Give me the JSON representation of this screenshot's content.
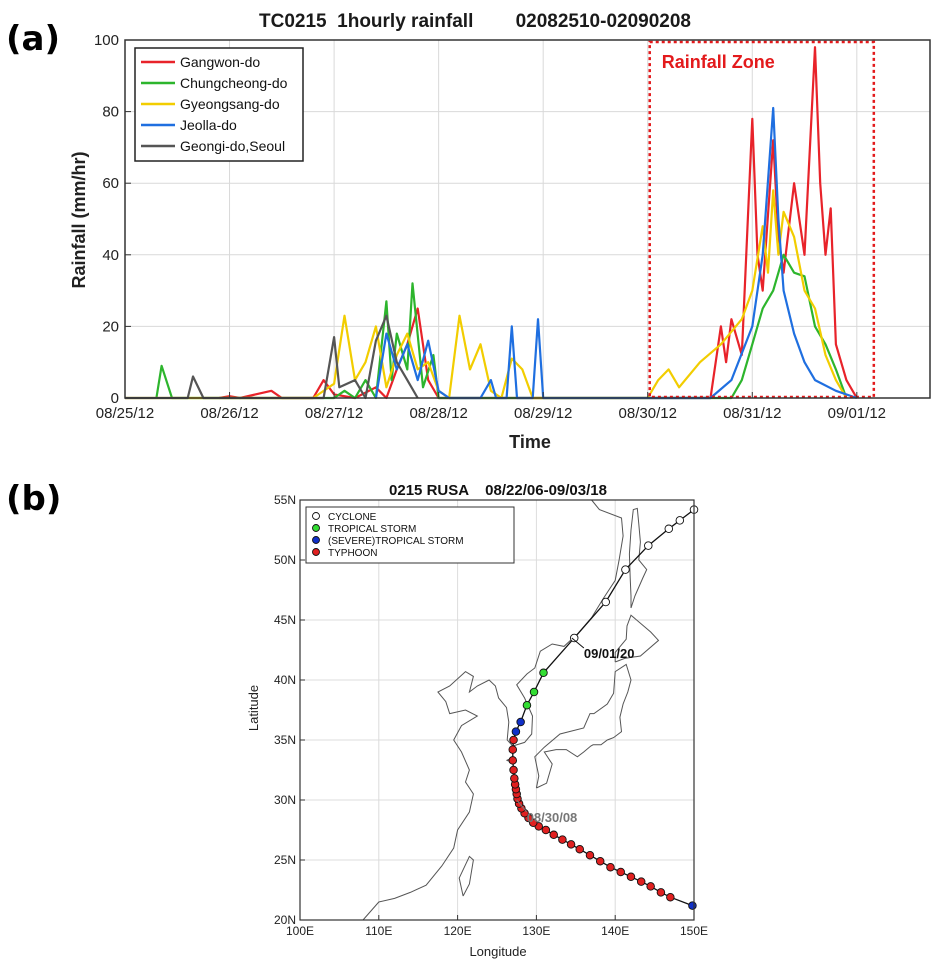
{
  "panels": {
    "a_label": "(a)",
    "b_label": "(b)"
  },
  "chart_data": [
    {
      "type": "line",
      "title": "TC0215  1hourly rainfall        02082510-02090208",
      "xlabel": "Time",
      "ylabel": "Rainfall (mm/hr)",
      "x_ticks": [
        "08/25/12",
        "08/26/12",
        "08/27/12",
        "08/28/12",
        "08/29/12",
        "08/30/12",
        "08/31/12",
        "09/01/12"
      ],
      "xlim": [
        "08/25/12",
        "09/01/12+0.7d"
      ],
      "ylim": [
        0,
        100
      ],
      "y_ticks": [
        0,
        20,
        40,
        60,
        80,
        100
      ],
      "grid": true,
      "legend_position": "top-left",
      "annotation": {
        "text": "Rainfall Zone",
        "color": "#e31a1c",
        "x_range_days": [
          5.0,
          7.0
        ]
      },
      "series": [
        {
          "name": "Gangwon-do",
          "color": "#e8232a",
          "points": [
            [
              0.9,
              0
            ],
            [
              1.0,
              0.5
            ],
            [
              1.1,
              0
            ],
            [
              1.4,
              2
            ],
            [
              1.5,
              0
            ],
            [
              1.8,
              0
            ],
            [
              1.9,
              5
            ],
            [
              2.0,
              1
            ],
            [
              2.2,
              0
            ],
            [
              2.4,
              3
            ],
            [
              2.5,
              0
            ],
            [
              2.6,
              8
            ],
            [
              2.7,
              15
            ],
            [
              2.8,
              25
            ],
            [
              2.9,
              5
            ],
            [
              3.0,
              0
            ],
            [
              3.9,
              0
            ],
            [
              5.6,
              0
            ],
            [
              5.7,
              20
            ],
            [
              5.75,
              10
            ],
            [
              5.8,
              22
            ],
            [
              5.9,
              12
            ],
            [
              6.0,
              78
            ],
            [
              6.05,
              40
            ],
            [
              6.1,
              30
            ],
            [
              6.2,
              72
            ],
            [
              6.25,
              45
            ],
            [
              6.3,
              35
            ],
            [
              6.4,
              60
            ],
            [
              6.45,
              50
            ],
            [
              6.5,
              40
            ],
            [
              6.6,
              98
            ],
            [
              6.65,
              60
            ],
            [
              6.7,
              40
            ],
            [
              6.75,
              53
            ],
            [
              6.8,
              15
            ],
            [
              6.9,
              5
            ],
            [
              7.0,
              0
            ]
          ]
        },
        {
          "name": "Chungcheong-do",
          "color": "#2db52d",
          "points": [
            [
              0.3,
              0
            ],
            [
              0.35,
              9
            ],
            [
              0.45,
              0
            ],
            [
              2.0,
              0
            ],
            [
              2.1,
              2
            ],
            [
              2.2,
              0
            ],
            [
              2.3,
              5
            ],
            [
              2.4,
              0
            ],
            [
              2.5,
              27
            ],
            [
              2.55,
              5
            ],
            [
              2.6,
              18
            ],
            [
              2.7,
              8
            ],
            [
              2.75,
              32
            ],
            [
              2.85,
              3
            ],
            [
              2.95,
              12
            ],
            [
              3.0,
              0
            ],
            [
              5.8,
              0
            ],
            [
              5.9,
              5
            ],
            [
              6.0,
              15
            ],
            [
              6.1,
              25
            ],
            [
              6.2,
              30
            ],
            [
              6.3,
              40
            ],
            [
              6.4,
              35
            ],
            [
              6.5,
              34
            ],
            [
              6.6,
              20
            ],
            [
              6.7,
              15
            ],
            [
              6.8,
              8
            ],
            [
              6.9,
              0
            ]
          ]
        },
        {
          "name": "Gyeongsang-do",
          "color": "#f2cd00",
          "points": [
            [
              0.0,
              0
            ],
            [
              1.8,
              0
            ],
            [
              2.0,
              4
            ],
            [
              2.1,
              23
            ],
            [
              2.2,
              5
            ],
            [
              2.3,
              10
            ],
            [
              2.4,
              20
            ],
            [
              2.5,
              3
            ],
            [
              2.6,
              12
            ],
            [
              2.7,
              18
            ],
            [
              2.8,
              8
            ],
            [
              2.9,
              10
            ],
            [
              3.0,
              2
            ],
            [
              3.1,
              0
            ],
            [
              3.2,
              23
            ],
            [
              3.3,
              8
            ],
            [
              3.4,
              15
            ],
            [
              3.5,
              2
            ],
            [
              3.6,
              0
            ],
            [
              3.7,
              11
            ],
            [
              3.8,
              8
            ],
            [
              3.9,
              0
            ],
            [
              5.0,
              0
            ],
            [
              5.1,
              5
            ],
            [
              5.2,
              8
            ],
            [
              5.3,
              3
            ],
            [
              5.5,
              10
            ],
            [
              5.7,
              15
            ],
            [
              5.9,
              22
            ],
            [
              6.0,
              30
            ],
            [
              6.1,
              48
            ],
            [
              6.15,
              35
            ],
            [
              6.2,
              58
            ],
            [
              6.25,
              40
            ],
            [
              6.3,
              52
            ],
            [
              6.4,
              45
            ],
            [
              6.5,
              30
            ],
            [
              6.6,
              25
            ],
            [
              6.7,
              12
            ],
            [
              6.8,
              5
            ],
            [
              6.9,
              0
            ]
          ]
        },
        {
          "name": "Jeolla-do",
          "color": "#1f6fe0",
          "points": [
            [
              2.4,
              0
            ],
            [
              2.5,
              18
            ],
            [
              2.6,
              8
            ],
            [
              2.7,
              15
            ],
            [
              2.8,
              5
            ],
            [
              2.9,
              16
            ],
            [
              3.0,
              2
            ],
            [
              3.1,
              0
            ],
            [
              3.4,
              0
            ],
            [
              3.5,
              5
            ],
            [
              3.55,
              0
            ],
            [
              3.65,
              0
            ],
            [
              3.7,
              20
            ],
            [
              3.75,
              0
            ],
            [
              3.9,
              0
            ],
            [
              3.95,
              22
            ],
            [
              4.0,
              0
            ],
            [
              5.6,
              0
            ],
            [
              5.8,
              5
            ],
            [
              6.0,
              20
            ],
            [
              6.1,
              40
            ],
            [
              6.2,
              81
            ],
            [
              6.25,
              50
            ],
            [
              6.3,
              30
            ],
            [
              6.4,
              18
            ],
            [
              6.5,
              10
            ],
            [
              6.6,
              5
            ],
            [
              6.8,
              2
            ],
            [
              7.0,
              0
            ]
          ]
        },
        {
          "name": "Geongi-do,Seoul",
          "color": "#555555",
          "points": [
            [
              0.0,
              0
            ],
            [
              0.6,
              0
            ],
            [
              0.65,
              6
            ],
            [
              0.75,
              0
            ],
            [
              1.9,
              0
            ],
            [
              2.0,
              17
            ],
            [
              2.05,
              3
            ],
            [
              2.2,
              5
            ],
            [
              2.3,
              0
            ],
            [
              2.4,
              16
            ],
            [
              2.5,
              23
            ],
            [
              2.6,
              10
            ],
            [
              2.7,
              5
            ],
            [
              2.8,
              0
            ]
          ]
        }
      ]
    },
    {
      "type": "scatter",
      "title": "0215 RUSA    08/22/06-09/03/18",
      "xlabel": "Longitude",
      "ylabel": "Latitude",
      "x_ticks": [
        "100E",
        "110E",
        "120E",
        "130E",
        "140E",
        "150E"
      ],
      "y_ticks": [
        "20N",
        "25N",
        "30N",
        "35N",
        "40N",
        "45N",
        "50N",
        "55N"
      ],
      "xlim": [
        100,
        150
      ],
      "ylim": [
        20,
        55
      ],
      "grid": true,
      "legend_position": "top-left",
      "legend": [
        {
          "name": "CYCLONE",
          "color": "#ffffff"
        },
        {
          "name": "TROPICAL STORM",
          "color": "#33dd33"
        },
        {
          "name": "(SEVERE)TROPICAL STORM",
          "color": "#1030c8"
        },
        {
          "name": "TYPHOON",
          "color": "#e02020"
        }
      ],
      "annotations": [
        {
          "text": "09/01/20",
          "color": "#111111",
          "point": [
            134.5,
            43.5
          ]
        },
        {
          "text": "08/30/08",
          "color": "#777777",
          "point": [
            127.5,
            30.0
          ]
        }
      ],
      "track": [
        {
          "lon": 149.8,
          "lat": 21.2,
          "cat": "(SEVERE)TROPICAL STORM"
        },
        {
          "lon": 147.0,
          "lat": 21.9,
          "cat": "TYPHOON"
        },
        {
          "lon": 145.8,
          "lat": 22.3,
          "cat": "TYPHOON"
        },
        {
          "lon": 144.5,
          "lat": 22.8,
          "cat": "TYPHOON"
        },
        {
          "lon": 143.3,
          "lat": 23.2,
          "cat": "TYPHOON"
        },
        {
          "lon": 142.0,
          "lat": 23.6,
          "cat": "TYPHOON"
        },
        {
          "lon": 140.7,
          "lat": 24.0,
          "cat": "TYPHOON"
        },
        {
          "lon": 139.4,
          "lat": 24.4,
          "cat": "TYPHOON"
        },
        {
          "lon": 138.1,
          "lat": 24.9,
          "cat": "TYPHOON"
        },
        {
          "lon": 136.8,
          "lat": 25.4,
          "cat": "TYPHOON"
        },
        {
          "lon": 135.5,
          "lat": 25.9,
          "cat": "TYPHOON"
        },
        {
          "lon": 134.4,
          "lat": 26.3,
          "cat": "TYPHOON"
        },
        {
          "lon": 133.3,
          "lat": 26.7,
          "cat": "TYPHOON"
        },
        {
          "lon": 132.2,
          "lat": 27.1,
          "cat": "TYPHOON"
        },
        {
          "lon": 131.2,
          "lat": 27.5,
          "cat": "TYPHOON"
        },
        {
          "lon": 130.3,
          "lat": 27.8,
          "cat": "TYPHOON"
        },
        {
          "lon": 129.6,
          "lat": 28.1,
          "cat": "TYPHOON"
        },
        {
          "lon": 129.0,
          "lat": 28.5,
          "cat": "TYPHOON"
        },
        {
          "lon": 128.5,
          "lat": 28.9,
          "cat": "TYPHOON"
        },
        {
          "lon": 128.1,
          "lat": 29.3,
          "cat": "TYPHOON"
        },
        {
          "lon": 127.8,
          "lat": 29.7,
          "cat": "TYPHOON"
        },
        {
          "lon": 127.6,
          "lat": 30.1,
          "cat": "TYPHOON"
        },
        {
          "lon": 127.5,
          "lat": 30.5,
          "cat": "TYPHOON"
        },
        {
          "lon": 127.4,
          "lat": 30.9,
          "cat": "TYPHOON"
        },
        {
          "lon": 127.3,
          "lat": 31.3,
          "cat": "TYPHOON"
        },
        {
          "lon": 127.2,
          "lat": 31.8,
          "cat": "TYPHOON"
        },
        {
          "lon": 127.1,
          "lat": 32.5,
          "cat": "TYPHOON"
        },
        {
          "lon": 127.0,
          "lat": 33.3,
          "cat": "TYPHOON"
        },
        {
          "lon": 127.0,
          "lat": 34.2,
          "cat": "TYPHOON"
        },
        {
          "lon": 127.1,
          "lat": 35.0,
          "cat": "TYPHOON"
        },
        {
          "lon": 127.4,
          "lat": 35.7,
          "cat": "(SEVERE)TROPICAL STORM"
        },
        {
          "lon": 128.0,
          "lat": 36.5,
          "cat": "(SEVERE)TROPICAL STORM"
        },
        {
          "lon": 128.8,
          "lat": 37.9,
          "cat": "TROPICAL STORM"
        },
        {
          "lon": 129.7,
          "lat": 39.0,
          "cat": "TROPICAL STORM"
        },
        {
          "lon": 130.9,
          "lat": 40.6,
          "cat": "TROPICAL STORM"
        },
        {
          "lon": 134.8,
          "lat": 43.5,
          "cat": "CYCLONE"
        },
        {
          "lon": 138.8,
          "lat": 46.5,
          "cat": "CYCLONE"
        },
        {
          "lon": 141.3,
          "lat": 49.2,
          "cat": "CYCLONE"
        },
        {
          "lon": 144.2,
          "lat": 51.2,
          "cat": "CYCLONE"
        },
        {
          "lon": 146.8,
          "lat": 52.6,
          "cat": "CYCLONE"
        },
        {
          "lon": 148.2,
          "lat": 53.3,
          "cat": "CYCLONE"
        },
        {
          "lon": 150.0,
          "lat": 54.2,
          "cat": "CYCLONE"
        }
      ]
    }
  ]
}
